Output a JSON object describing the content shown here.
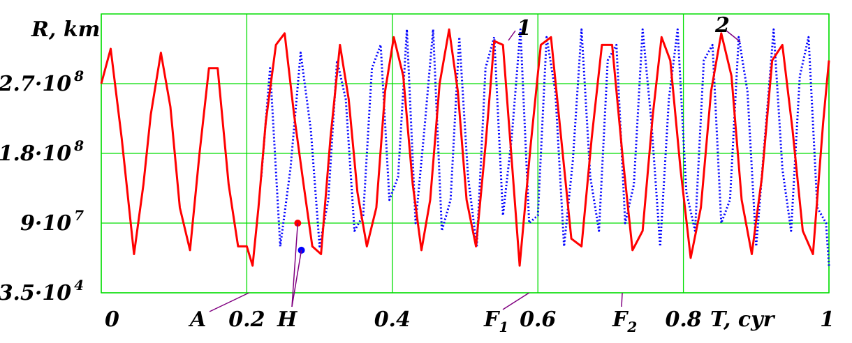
{
  "chart_data": {
    "type": "line",
    "ylabel": "R, km",
    "xlabel": "T, cyr",
    "xlim": [
      0,
      1
    ],
    "ylim": [
      35000,
      360000000
    ],
    "grid": true,
    "x_ticks": [
      {
        "value": 0,
        "label": "0"
      },
      {
        "value": 0.2,
        "label": "0.2"
      },
      {
        "value": 0.4,
        "label": "0.4"
      },
      {
        "value": 0.6,
        "label": "0.6"
      },
      {
        "value": 0.8,
        "label": "0.8"
      },
      {
        "value": 1,
        "label": "1"
      }
    ],
    "y_ticks": [
      {
        "value": 35000,
        "mantissa": "3.5·10",
        "exponent": "4"
      },
      {
        "value": 90000000,
        "mantissa": "9·10",
        "exponent": "7"
      },
      {
        "value": 180000000,
        "mantissa": "1.8·10",
        "exponent": "8"
      },
      {
        "value": 270000000,
        "mantissa": "2.7·10",
        "exponent": "8"
      }
    ],
    "series": [
      {
        "name": "1",
        "color": "#ff0000",
        "style": "solid",
        "x": [
          0,
          0.013,
          0.028,
          0.045,
          0.058,
          0.068,
          0.082,
          0.095,
          0.108,
          0.122,
          0.135,
          0.148,
          0.16,
          0.175,
          0.188,
          0.2,
          0.208,
          0.216,
          0.226,
          0.24,
          0.252,
          0.265,
          0.278,
          0.29,
          0.302,
          0.315,
          0.328,
          0.34,
          0.352,
          0.365,
          0.378,
          0.39,
          0.402,
          0.415,
          0.428,
          0.44,
          0.452,
          0.465,
          0.478,
          0.49,
          0.502,
          0.515,
          0.528,
          0.54,
          0.552,
          0.565,
          0.575,
          0.59,
          0.604,
          0.618,
          0.632,
          0.646,
          0.66,
          0.674,
          0.688,
          0.702,
          0.716,
          0.73,
          0.744,
          0.758,
          0.77,
          0.782,
          0.796,
          0.81,
          0.824,
          0.838,
          0.852,
          0.866,
          0.88,
          0.894,
          0.908,
          0.922,
          0.936,
          0.95,
          0.964,
          0.978,
          0.992,
          1
        ],
        "y": [
          270000000,
          315000000,
          200000000,
          50000000,
          140000000,
          230000000,
          310000000,
          240000000,
          110000000,
          55000000,
          180000000,
          290000000,
          290000000,
          140000000,
          60000000,
          60000000,
          35000000,
          110000000,
          220000000,
          320000000,
          335000000,
          230000000,
          140000000,
          60000000,
          50000000,
          200000000,
          320000000,
          250000000,
          130000000,
          60000000,
          110000000,
          260000000,
          330000000,
          280000000,
          140000000,
          55000000,
          120000000,
          270000000,
          340000000,
          260000000,
          120000000,
          60000000,
          190000000,
          325000000,
          320000000,
          160000000,
          35000000,
          190000000,
          320000000,
          330000000,
          200000000,
          70000000,
          60000000,
          200000000,
          320000000,
          320000000,
          180000000,
          55000000,
          80000000,
          230000000,
          330000000,
          300000000,
          160000000,
          45000000,
          110000000,
          260000000,
          335000000,
          280000000,
          120000000,
          50000000,
          150000000,
          300000000,
          320000000,
          210000000,
          80000000,
          50000000,
          220000000,
          300000000
        ]
      },
      {
        "name": "2",
        "color": "#0000ff",
        "style": "dotted",
        "x": [
          0.22,
          0.232,
          0.246,
          0.26,
          0.274,
          0.288,
          0.3,
          0.312,
          0.324,
          0.336,
          0.348,
          0.36,
          0.372,
          0.384,
          0.396,
          0.408,
          0.42,
          0.432,
          0.444,
          0.456,
          0.468,
          0.48,
          0.492,
          0.504,
          0.516,
          0.528,
          0.54,
          0.552,
          0.564,
          0.576,
          0.588,
          0.6,
          0.612,
          0.624,
          0.636,
          0.648,
          0.66,
          0.672,
          0.684,
          0.696,
          0.708,
          0.72,
          0.732,
          0.744,
          0.756,
          0.768,
          0.78,
          0.792,
          0.804,
          0.816,
          0.828,
          0.84,
          0.852,
          0.864,
          0.876,
          0.888,
          0.9,
          0.912,
          0.924,
          0.936,
          0.948,
          0.96,
          0.972,
          0.984,
          0.996,
          1
        ],
        "y": [
          150000000,
          290000000,
          60000000,
          160000000,
          310000000,
          210000000,
          60000000,
          120000000,
          300000000,
          250000000,
          80000000,
          100000000,
          290000000,
          320000000,
          120000000,
          150000000,
          340000000,
          90000000,
          210000000,
          340000000,
          80000000,
          120000000,
          330000000,
          150000000,
          60000000,
          290000000,
          330000000,
          100000000,
          200000000,
          340000000,
          90000000,
          100000000,
          330000000,
          260000000,
          60000000,
          170000000,
          340000000,
          150000000,
          80000000,
          300000000,
          320000000,
          90000000,
          140000000,
          340000000,
          220000000,
          60000000,
          250000000,
          340000000,
          130000000,
          80000000,
          300000000,
          320000000,
          90000000,
          120000000,
          330000000,
          260000000,
          60000000,
          200000000,
          340000000,
          160000000,
          80000000,
          280000000,
          330000000,
          110000000,
          90000000,
          35000000
        ]
      }
    ],
    "annotations": [
      {
        "label": "A",
        "x": 0.203,
        "y": 35000
      },
      {
        "label": "H",
        "x": 0.27,
        "y": 90000000
      },
      {
        "label": "F",
        "sub": "1",
        "x": 0.588,
        "y": 35000
      },
      {
        "label": "F",
        "sub": "2",
        "x": 0.716,
        "y": 35000
      }
    ],
    "curve_labels": [
      {
        "label": "1",
        "series": "1"
      },
      {
        "label": "2",
        "series": "2"
      }
    ],
    "markers": [
      {
        "series": "1",
        "x": 0.27,
        "y": 90000000
      },
      {
        "series": "2",
        "x": 0.275,
        "y": 55000000
      }
    ]
  },
  "colors": {
    "grid": "#00dd00",
    "axis_frame": "#00dd00",
    "series1": "#ff0000",
    "series2": "#0000ff",
    "leader": "#800080"
  }
}
